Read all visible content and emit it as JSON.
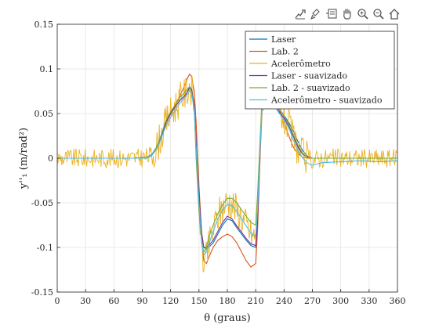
{
  "toolbar": {
    "icons": [
      "export-icon",
      "brush-icon",
      "datatip-icon",
      "pan-hand-icon",
      "zoom-in-icon",
      "zoom-out-icon",
      "home-icon"
    ]
  },
  "chart_data": {
    "type": "line",
    "title": "",
    "xlabel": "θ (graus)",
    "ylabel": "y''₁ (m/rad²)",
    "xlim": [
      0,
      360
    ],
    "ylim": [
      -0.15,
      0.15
    ],
    "xticks": [
      "0",
      "30",
      "60",
      "90",
      "120",
      "150",
      "180",
      "210",
      "240",
      "270",
      "300",
      "330",
      "360"
    ],
    "yticks": [
      "0.15",
      "0.1",
      "0.05",
      "0",
      "-0.05",
      "-0.1",
      "-0.15"
    ],
    "grid": true,
    "legend_position": "top-right",
    "series": [
      {
        "name": "Laser",
        "color": "#0072BD",
        "x": [
          0,
          20,
          40,
          60,
          80,
          95,
          100,
          105,
          110,
          115,
          120,
          125,
          130,
          135,
          138,
          140,
          142,
          145,
          147,
          150,
          153,
          155,
          158,
          160,
          165,
          170,
          175,
          180,
          185,
          190,
          195,
          200,
          205,
          210,
          212,
          215,
          217,
          220,
          225,
          230,
          235,
          240,
          245,
          250,
          255,
          260,
          265,
          270,
          280,
          300,
          320,
          340,
          360
        ],
        "y": [
          0.0,
          0.0,
          0.0,
          0.0,
          0.0,
          0.001,
          0.004,
          0.012,
          0.025,
          0.04,
          0.05,
          0.058,
          0.065,
          0.07,
          0.075,
          0.08,
          0.078,
          0.06,
          0.02,
          -0.04,
          -0.085,
          -0.1,
          -0.102,
          -0.1,
          -0.095,
          -0.085,
          -0.075,
          -0.068,
          -0.07,
          -0.078,
          -0.085,
          -0.092,
          -0.098,
          -0.1,
          -0.07,
          0.02,
          0.07,
          0.08,
          0.072,
          0.062,
          0.055,
          0.048,
          0.04,
          0.03,
          0.018,
          0.008,
          0.002,
          0.0,
          0.0,
          0.0,
          0.0,
          0.0,
          0.0
        ]
      },
      {
        "name": "Lab. 2",
        "color": "#D95319",
        "x": [
          0,
          20,
          40,
          60,
          80,
          95,
          100,
          105,
          110,
          115,
          120,
          125,
          130,
          135,
          138,
          140,
          142,
          145,
          147,
          150,
          153,
          155,
          158,
          160,
          165,
          170,
          175,
          180,
          185,
          190,
          195,
          200,
          205,
          210,
          212,
          215,
          217,
          220,
          225,
          230,
          235,
          240,
          245,
          250,
          255,
          260,
          265,
          270,
          280,
          300,
          320,
          340,
          360
        ],
        "y": [
          0.0,
          0.0,
          0.0,
          0.0,
          0.0,
          0.0,
          0.003,
          0.01,
          0.022,
          0.038,
          0.05,
          0.06,
          0.07,
          0.082,
          0.09,
          0.094,
          0.092,
          0.075,
          0.04,
          -0.03,
          -0.09,
          -0.115,
          -0.118,
          -0.112,
          -0.1,
          -0.092,
          -0.088,
          -0.085,
          -0.088,
          -0.095,
          -0.105,
          -0.115,
          -0.122,
          -0.118,
          -0.08,
          0.01,
          0.06,
          0.078,
          0.075,
          0.065,
          0.055,
          0.04,
          0.025,
          0.012,
          0.005,
          0.001,
          0.0,
          0.0,
          0.0,
          0.0,
          0.0,
          0.0,
          0.0
        ]
      },
      {
        "name": "Acelerômetro",
        "color": "#EDB120",
        "x": [
          0,
          20,
          40,
          60,
          80,
          95,
          100,
          105,
          110,
          115,
          120,
          125,
          130,
          135,
          138,
          140,
          142,
          145,
          147,
          150,
          153,
          155,
          158,
          160,
          165,
          170,
          175,
          180,
          185,
          190,
          195,
          200,
          205,
          210,
          212,
          215,
          217,
          220,
          225,
          230,
          235,
          240,
          245,
          250,
          255,
          260,
          265,
          270,
          280,
          300,
          320,
          340,
          360
        ],
        "y": [
          0.0,
          0.0,
          0.0,
          0.0,
          0.0,
          0.001,
          0.004,
          0.012,
          0.025,
          0.04,
          0.05,
          0.058,
          0.066,
          0.072,
          0.078,
          0.082,
          0.078,
          0.058,
          0.015,
          -0.05,
          -0.1,
          -0.12,
          -0.112,
          -0.1,
          -0.08,
          -0.065,
          -0.055,
          -0.048,
          -0.05,
          -0.058,
          -0.066,
          -0.075,
          -0.085,
          -0.09,
          -0.06,
          0.02,
          0.065,
          0.078,
          0.07,
          0.06,
          0.052,
          0.045,
          0.035,
          0.022,
          0.01,
          0.003,
          0.0,
          -0.002,
          0.0,
          0.0,
          0.0,
          0.0,
          0.0
        ],
        "noise": true
      },
      {
        "name": "Laser - suavizado",
        "color": "#7E2F8E",
        "x": [
          0,
          20,
          40,
          60,
          80,
          95,
          100,
          105,
          110,
          115,
          120,
          125,
          130,
          135,
          138,
          140,
          142,
          145,
          147,
          150,
          153,
          155,
          158,
          160,
          165,
          170,
          175,
          180,
          185,
          190,
          195,
          200,
          205,
          210,
          212,
          215,
          217,
          220,
          225,
          230,
          235,
          240,
          245,
          250,
          255,
          260,
          265,
          270,
          280,
          300,
          320,
          340,
          360
        ],
        "y": [
          0.0,
          0.0,
          0.0,
          0.0,
          0.0,
          0.001,
          0.004,
          0.012,
          0.025,
          0.04,
          0.05,
          0.058,
          0.065,
          0.07,
          0.075,
          0.079,
          0.077,
          0.06,
          0.02,
          -0.04,
          -0.085,
          -0.1,
          -0.1,
          -0.098,
          -0.092,
          -0.082,
          -0.072,
          -0.065,
          -0.068,
          -0.076,
          -0.083,
          -0.09,
          -0.096,
          -0.098,
          -0.068,
          0.02,
          0.068,
          0.078,
          0.07,
          0.06,
          0.052,
          0.045,
          0.036,
          0.024,
          0.012,
          0.004,
          0.001,
          0.0,
          0.0,
          0.0,
          0.0,
          0.0,
          0.0
        ]
      },
      {
        "name": "Lab. 2 - suavizado",
        "color": "#77AC30",
        "x": [
          0,
          20,
          40,
          60,
          80,
          95,
          100,
          105,
          110,
          115,
          120,
          125,
          130,
          135,
          138,
          140,
          142,
          145,
          147,
          150,
          153,
          155,
          158,
          160,
          165,
          170,
          175,
          180,
          185,
          190,
          195,
          200,
          205,
          210,
          212,
          215,
          217,
          220,
          225,
          230,
          235,
          240,
          245,
          250,
          255,
          260,
          265,
          270,
          280,
          300,
          320,
          340,
          360
        ],
        "y": [
          0.0,
          0.0,
          0.0,
          0.0,
          0.0,
          0.001,
          0.004,
          0.012,
          0.026,
          0.042,
          0.052,
          0.06,
          0.068,
          0.074,
          0.078,
          0.08,
          0.075,
          0.055,
          0.0,
          -0.06,
          -0.095,
          -0.105,
          -0.1,
          -0.09,
          -0.075,
          -0.062,
          -0.052,
          -0.045,
          -0.045,
          -0.05,
          -0.058,
          -0.065,
          -0.072,
          -0.075,
          -0.04,
          0.03,
          0.07,
          0.082,
          0.075,
          0.064,
          0.055,
          0.047,
          0.038,
          0.026,
          0.014,
          0.005,
          0.001,
          0.0,
          0.0,
          0.0,
          0.0,
          0.0,
          0.0
        ]
      },
      {
        "name": "Acelerômetro - suavizado",
        "color": "#4DBEEE",
        "x": [
          0,
          20,
          40,
          60,
          80,
          95,
          100,
          105,
          110,
          115,
          120,
          125,
          130,
          135,
          138,
          140,
          142,
          145,
          147,
          150,
          153,
          155,
          158,
          160,
          165,
          170,
          175,
          180,
          185,
          190,
          195,
          200,
          205,
          210,
          212,
          215,
          217,
          220,
          225,
          230,
          235,
          240,
          245,
          250,
          255,
          260,
          265,
          270,
          280,
          300,
          320,
          340,
          360
        ],
        "y": [
          0.0,
          0.0,
          0.0,
          0.0,
          0.0,
          0.0,
          0.003,
          0.01,
          0.022,
          0.036,
          0.046,
          0.054,
          0.062,
          0.068,
          0.072,
          0.076,
          0.073,
          0.055,
          0.012,
          -0.05,
          -0.095,
          -0.108,
          -0.105,
          -0.098,
          -0.082,
          -0.068,
          -0.058,
          -0.052,
          -0.053,
          -0.06,
          -0.068,
          -0.076,
          -0.084,
          -0.088,
          -0.058,
          0.02,
          0.062,
          0.075,
          0.068,
          0.058,
          0.05,
          0.043,
          0.034,
          0.02,
          0.008,
          0.0,
          -0.006,
          -0.008,
          -0.005,
          -0.004,
          -0.003,
          -0.004,
          -0.003
        ]
      }
    ]
  }
}
